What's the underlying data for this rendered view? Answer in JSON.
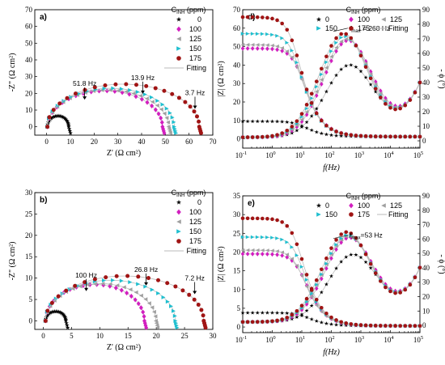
{
  "legend_header": "C",
  "legend_sub": "INH",
  "legend_unit": " (ppm)",
  "fitting_label": "Fitting",
  "colors": {
    "0": "#000000",
    "100": "#d21fbf",
    "125": "#a0a0a0",
    "150": "#1fbfcf",
    "175": "#a01414"
  },
  "chart_data": [
    {
      "id": "a",
      "type": "scatter",
      "panel_label": "a)",
      "xlabel": "Z' (Ω cm²)",
      "ylabel": "-Z\" (Ω cm²)",
      "xlim": [
        -5,
        70
      ],
      "ylim": [
        -5,
        70
      ],
      "xticks": [
        0,
        10,
        20,
        30,
        40,
        50,
        60,
        70
      ],
      "yticks": [
        0,
        10,
        20,
        30,
        40,
        50,
        60,
        70
      ],
      "series": [
        {
          "name": "0",
          "marker": "star",
          "R": 9,
          "Rs": 0.3,
          "peak": 6.5
        },
        {
          "name": "100",
          "marker": "diamond",
          "R": 48.5,
          "Rs": 0.3,
          "peak": 21.5
        },
        {
          "name": "125",
          "marker": "triangle-left",
          "R": 51,
          "Rs": 0.3,
          "peak": 22
        },
        {
          "name": "150",
          "marker": "triangle-right",
          "R": 53.5,
          "Rs": 0.3,
          "peak": 23
        },
        {
          "name": "175",
          "marker": "circle",
          "R": 64,
          "Rs": 0.3,
          "peak": 25.5
        }
      ],
      "annotations": [
        {
          "text": "51.8 Hz",
          "x": 16,
          "y": 22.5
        },
        {
          "text": "13.9 Hz",
          "x": 40.5,
          "y": 26
        },
        {
          "text": "3.7 Hz",
          "x": 62.5,
          "y": 17
        }
      ]
    },
    {
      "id": "b",
      "type": "scatter",
      "panel_label": "b)",
      "xlabel": "Z' (Ω cm²)",
      "ylabel": "-Z\" (Ω cm²)",
      "xlim": [
        -1.5,
        30
      ],
      "ylim": [
        -2,
        30
      ],
      "xticks": [
        0,
        5,
        10,
        15,
        20,
        25,
        30
      ],
      "yticks": [
        0,
        5,
        10,
        15,
        20,
        25,
        30
      ],
      "series": [
        {
          "name": "0",
          "marker": "star",
          "R": 3.6,
          "Rs": 0.4,
          "peak": 2.2
        },
        {
          "name": "100",
          "marker": "diamond",
          "R": 17.5,
          "Rs": 0.4,
          "peak": 8.5
        },
        {
          "name": "125",
          "marker": "triangle-left",
          "R": 19.5,
          "Rs": 0.4,
          "peak": 8.7
        },
        {
          "name": "150",
          "marker": "triangle-right",
          "R": 23,
          "Rs": 0.4,
          "peak": 9.5
        },
        {
          "name": "175",
          "marker": "circle",
          "R": 28,
          "Rs": 0.4,
          "peak": 10.5
        }
      ],
      "annotations": [
        {
          "text": "100 Hz",
          "x": 7.6,
          "y": 9.4
        },
        {
          "text": "26.8 Hz",
          "x": 18.2,
          "y": 10.7
        },
        {
          "text": "7.2 Hz",
          "x": 26.8,
          "y": 8.7
        }
      ]
    },
    {
      "id": "d",
      "type": "line",
      "panel_label": "d)",
      "xlabel": "f(Hz)",
      "ylabel": "|Z| (Ω cm²)",
      "y2label": "- ϕ (°)",
      "xlim": [
        -1,
        5
      ],
      "ylim": [
        -5,
        70
      ],
      "y2lim": [
        -5,
        90
      ],
      "yticks": [
        0,
        10,
        20,
        30,
        40,
        50,
        60,
        70
      ],
      "y2ticks": [
        0,
        10,
        20,
        30,
        40,
        50,
        60,
        70,
        80,
        90
      ],
      "xtick_exps": [
        "-1",
        "0",
        "1",
        "2",
        "3",
        "4",
        "5"
      ],
      "fmax_label": "f",
      "fmax_sub": "max",
      "fmax_value": " = 268 Hz",
      "fmax_x": 2.45,
      "fmax_y": 60,
      "series": [
        {
          "name": "0",
          "modZ_low": 9.5,
          "modZ_high": 1.2,
          "phase_peak": 48,
          "phase_peak_logf": 2.6
        },
        {
          "name": "100",
          "modZ_low": 49,
          "modZ_high": 1.2,
          "phase_peak": 65,
          "phase_peak_logf": 2.55
        },
        {
          "name": "125",
          "modZ_low": 51,
          "modZ_high": 1.2,
          "phase_peak": 66,
          "phase_peak_logf": 2.5
        },
        {
          "name": "150",
          "modZ_low": 57,
          "modZ_high": 1.2,
          "phase_peak": 68,
          "phase_peak_logf": 2.45
        },
        {
          "name": "175",
          "modZ_low": 66,
          "modZ_high": 1.2,
          "phase_peak": 70,
          "phase_peak_logf": 2.4
        }
      ]
    },
    {
      "id": "e",
      "type": "line",
      "panel_label": "e)",
      "xlabel": "f(Hz)",
      "ylabel": "|Z| (Ω cm²)",
      "y2label": "- ϕ (°)",
      "xlim": [
        -1,
        5
      ],
      "ylim": [
        -1.5,
        35
      ],
      "y2lim": [
        -5,
        90
      ],
      "yticks": [
        0,
        5,
        10,
        15,
        20,
        25,
        30,
        35
      ],
      "y2ticks": [
        0,
        10,
        20,
        30,
        40,
        50,
        60,
        70,
        80,
        90
      ],
      "xtick_exps": [
        "-1",
        "0",
        "1",
        "2",
        "3",
        "4",
        "5"
      ],
      "fmax_label": "f",
      "fmax_sub": "max",
      "fmax_value": "=53 Hz",
      "fmax_x": 2.45,
      "fmax_y": 24.5,
      "series": [
        {
          "name": "0",
          "modZ_low": 3.8,
          "modZ_high": 0.3,
          "phase_peak": 45,
          "phase_peak_logf": 2.7
        },
        {
          "name": "100",
          "modZ_low": 19.5,
          "modZ_high": 0.3,
          "phase_peak": 57,
          "phase_peak_logf": 2.6
        },
        {
          "name": "125",
          "modZ_low": 20.5,
          "modZ_high": 0.3,
          "phase_peak": 58,
          "phase_peak_logf": 2.55
        },
        {
          "name": "150",
          "modZ_low": 24,
          "modZ_high": 0.3,
          "phase_peak": 59,
          "phase_peak_logf": 2.55
        },
        {
          "name": "175",
          "modZ_low": 29,
          "modZ_high": 0.3,
          "phase_peak": 61,
          "phase_peak_logf": 2.5
        }
      ]
    }
  ]
}
